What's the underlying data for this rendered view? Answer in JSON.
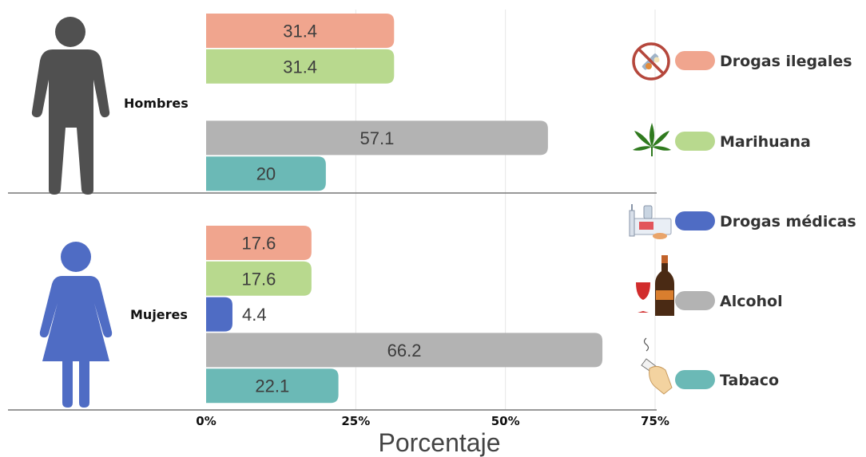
{
  "chart_data": {
    "type": "bar",
    "orientation": "horizontal",
    "xlabel": "Porcentaje",
    "xlim": [
      0,
      75
    ],
    "xticks": [
      "0%",
      "25%",
      "50%",
      "75%"
    ],
    "grid": true,
    "legend_position": "right",
    "groups": [
      "Hombres",
      "Mujeres"
    ],
    "series": [
      {
        "name": "Drogas ilegales",
        "color": "#F0A58E",
        "icon": "no-drugs-icon",
        "values": [
          31.4,
          17.6
        ]
      },
      {
        "name": "Marihuana",
        "color": "#B8D98E",
        "icon": "cannabis-leaf-icon",
        "values": [
          31.4,
          17.6
        ]
      },
      {
        "name": "Drogas médicas",
        "color": "#4F6CC4",
        "icon": "medicine-syringe-icon",
        "values": [
          null,
          4.4
        ]
      },
      {
        "name": "Alcohol",
        "color": "#B3B3B3",
        "icon": "wine-bottle-icon",
        "values": [
          57.1,
          66.2
        ]
      },
      {
        "name": "Tabaco",
        "color": "#6BB9B6",
        "icon": "cigarette-hand-icon",
        "values": [
          20,
          22.1
        ]
      }
    ],
    "group_icons": [
      "man-figure-icon",
      "woman-figure-icon"
    ],
    "group_icon_colors": [
      "#505050",
      "#4F6CC4"
    ]
  }
}
